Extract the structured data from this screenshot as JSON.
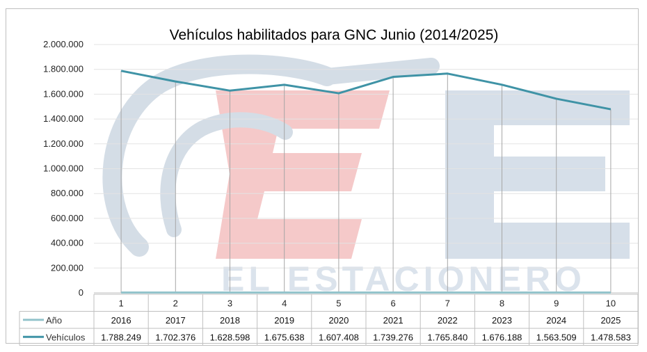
{
  "chart_data": {
    "type": "line",
    "title": "Vehículos habilitados para GNC Junio (2014/2025)",
    "categories": [
      "1",
      "2",
      "3",
      "4",
      "5",
      "6",
      "7",
      "8",
      "9",
      "10"
    ],
    "ylim": [
      0,
      2000000
    ],
    "yticks": [
      "0",
      "200.000",
      "400.000",
      "600.000",
      "800.000",
      "1.000.000",
      "1.200.000",
      "1.400.000",
      "1.600.000",
      "1.800.000",
      "2.000.000"
    ],
    "grid": true,
    "series": [
      {
        "name": "Año",
        "color": "#93c4cc",
        "values": [
          2016,
          2017,
          2018,
          2019,
          2020,
          2021,
          2022,
          2023,
          2024,
          2025
        ],
        "labels": [
          "2016",
          "2017",
          "2018",
          "2019",
          "2020",
          "2021",
          "2022",
          "2023",
          "2024",
          "2025"
        ]
      },
      {
        "name": "Vehículos",
        "color": "#3f93a6",
        "values": [
          1788249,
          1702376,
          1628598,
          1675638,
          1607408,
          1739276,
          1765840,
          1676188,
          1563509,
          1478583
        ],
        "labels": [
          "1.788.249",
          "1.702.376",
          "1.628.598",
          "1.675.638",
          "1.607.408",
          "1.739.276",
          "1.765.840",
          "1.676.188",
          "1.563.509",
          "1.478.583"
        ]
      }
    ],
    "watermark": "EL ESTACIONERO"
  }
}
